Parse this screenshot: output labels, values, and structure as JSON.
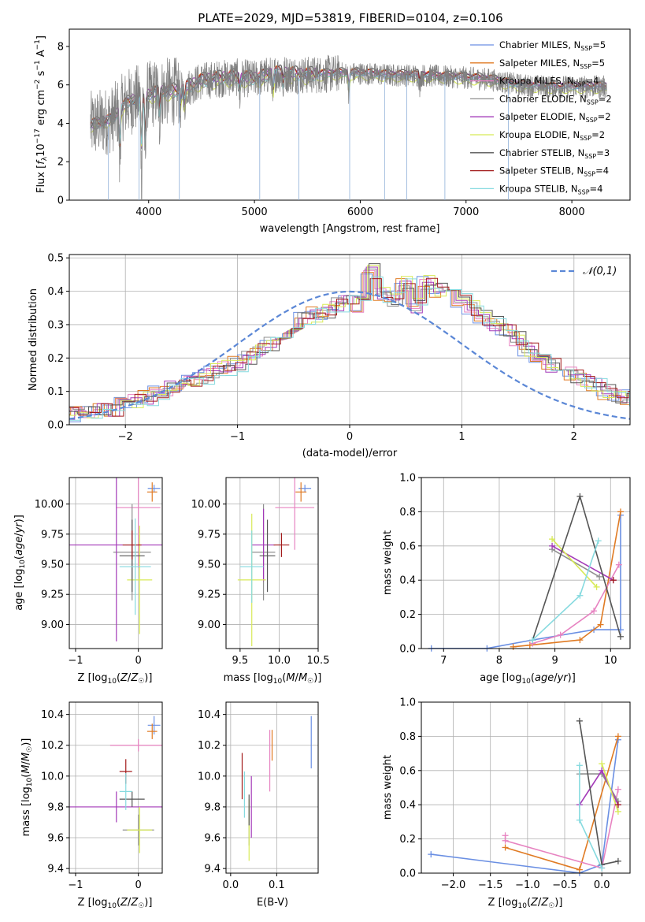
{
  "title": "PLATE=2029, MJD=53819, FIBERID=0104, z=0.106",
  "colors": {
    "Chabrier MILES": "#6a8fe3",
    "Salpeter MILES": "#e07b24",
    "Kroupa MILES": "#e783c1",
    "Chabrier ELODIE": "#909090",
    "Salpeter ELODIE": "#a339b8",
    "Kroupa ELODIE": "#d8ea57",
    "Chabrier STELIB": "#555555",
    "Salpeter STELIB": "#a31c1c",
    "Kroupa STELIB": "#86dadf"
  },
  "chart_data": [
    {
      "type": "line",
      "name": "spectrum",
      "xlabel": "wavelength [Angstrom, rest frame]",
      "ylabel": "Flux [fλ10⁻¹⁷ erg cm⁻² s⁻¹ A⁻¹]",
      "xlim": [
        3250,
        8550
      ],
      "ylim": [
        0,
        8.9
      ],
      "xticks": [
        4000,
        5000,
        6000,
        7000,
        8000
      ],
      "yticks": [
        0,
        2,
        4,
        6,
        8
      ],
      "legend_position": "right",
      "legend": [
        {
          "series": "Chabrier MILES",
          "label": "Chabrier MILES, N_SSP=5"
        },
        {
          "series": "Salpeter MILES",
          "label": "Salpeter MILES, N_SSP=5"
        },
        {
          "series": "Kroupa MILES",
          "label": "Kroupa MILES, N_SSP=4"
        },
        {
          "series": "Chabrier ELODIE",
          "label": "Chabrier ELODIE, N_SSP=2"
        },
        {
          "series": "Salpeter ELODIE",
          "label": "Salpeter ELODIE, N_SSP=2"
        },
        {
          "series": "Kroupa ELODIE",
          "label": "Kroupa ELODIE, N_SSP=2"
        },
        {
          "series": "Chabrier STELIB",
          "label": "Chabrier STELIB, N_SSP=3"
        },
        {
          "series": "Salpeter STELIB",
          "label": "Salpeter STELIB, N_SSP=4"
        },
        {
          "series": "Kroupa STELIB",
          "label": "Kroupa STELIB, N_SSP=4"
        }
      ],
      "data_continuum": {
        "x": [
          3450,
          3650,
          3800,
          3950,
          4100,
          4300,
          4500,
          4800,
          5000,
          5200,
          5500,
          5800,
          6000,
          6300,
          6600,
          6900,
          7200,
          7500,
          7800,
          8100,
          8330
        ],
        "y": [
          3.9,
          4.2,
          5.1,
          5.4,
          5.6,
          5.7,
          6.2,
          6.4,
          6.3,
          6.6,
          6.5,
          6.6,
          6.6,
          6.5,
          6.5,
          6.4,
          6.3,
          6.0,
          5.9,
          5.9,
          5.9
        ]
      }
    },
    {
      "type": "histogram",
      "name": "normalized residuals",
      "xlabel": "(data-model)/error",
      "ylabel": "Normed distribution",
      "xlim": [
        -2.5,
        2.5
      ],
      "ylim": [
        0,
        0.51
      ],
      "xticks": [
        -2,
        -1,
        0,
        1,
        2
      ],
      "yticks": [
        0.0,
        0.1,
        0.2,
        0.3,
        0.4,
        0.5
      ],
      "reference_curve": {
        "label": "𝒩(0,1)",
        "mean": 0,
        "sigma": 1,
        "style": "dashed"
      },
      "bin_width": 0.1,
      "base_values": [
        0.03,
        0.03,
        0.04,
        0.04,
        0.05,
        0.06,
        0.07,
        0.08,
        0.1,
        0.11,
        0.12,
        0.13,
        0.14,
        0.16,
        0.17,
        0.18,
        0.2,
        0.22,
        0.24,
        0.27,
        0.29,
        0.32,
        0.33,
        0.34,
        0.36,
        0.38,
        0.36,
        0.46,
        0.39,
        0.38,
        0.42,
        0.36,
        0.43,
        0.4,
        0.41,
        0.37,
        0.35,
        0.32,
        0.3,
        0.28,
        0.26,
        0.23,
        0.2,
        0.18,
        0.17,
        0.15,
        0.13,
        0.12,
        0.1,
        0.09,
        0.08,
        0.07,
        0.06,
        0.05,
        0.05,
        0.04
      ]
    },
    {
      "type": "errorbar",
      "name": "age vs metallicity",
      "xlabel": "Z [log₁₀(Z/Z☉)]",
      "ylabel": "age  [log₁₀(age/yr)]",
      "xlim": [
        -1.1,
        0.38
      ],
      "ylim": [
        8.8,
        10.22
      ],
      "xticks": [
        -1,
        0
      ],
      "yticks": [
        9.0,
        9.25,
        9.5,
        9.75,
        10.0
      ],
      "points": [
        {
          "series": "Chabrier MILES",
          "x": 0.25,
          "xerr": 0.1,
          "y": 10.13,
          "yerr": 0.03
        },
        {
          "series": "Salpeter MILES",
          "x": 0.22,
          "xerr": 0.08,
          "y": 10.1,
          "yerr": 0.08
        },
        {
          "series": "Kroupa MILES",
          "x": 0.0,
          "xerr": 0.35,
          "y": 9.97,
          "yerr": 0.5
        },
        {
          "series": "Chabrier ELODIE",
          "x": -0.1,
          "xerr": 0.3,
          "y": 9.6,
          "yerr": 0.4
        },
        {
          "series": "Salpeter ELODIE",
          "x": -0.35,
          "xerr": 0.75,
          "y": 9.66,
          "yerr": 0.8
        },
        {
          "series": "Kroupa ELODIE",
          "x": 0.02,
          "xerr": 0.2,
          "y": 9.37,
          "yerr": 0.45
        },
        {
          "series": "Chabrier STELIB",
          "x": -0.1,
          "xerr": 0.2,
          "y": 9.57,
          "yerr": 0.3
        },
        {
          "series": "Salpeter STELIB",
          "x": -0.1,
          "xerr": 0.15,
          "y": 9.66,
          "yerr": 0.12
        },
        {
          "series": "Kroupa STELIB",
          "x": -0.05,
          "xerr": 0.25,
          "y": 9.48,
          "yerr": 0.4
        }
      ]
    },
    {
      "type": "errorbar",
      "name": "age vs mass",
      "xlabel": "mass [log₁₀(M/M☉)]",
      "ylabel": "",
      "xlim": [
        9.32,
        10.5
      ],
      "ylim": [
        8.8,
        10.22
      ],
      "xticks": [
        9.5,
        10.0,
        10.5
      ],
      "yticks": [
        9.0,
        9.25,
        9.5,
        9.75,
        10.0
      ],
      "points": [
        {
          "series": "Chabrier MILES",
          "x": 10.33,
          "xerr": 0.08,
          "y": 10.13,
          "yerr": 0.03
        },
        {
          "series": "Salpeter MILES",
          "x": 10.28,
          "xerr": 0.07,
          "y": 10.1,
          "yerr": 0.08
        },
        {
          "series": "Kroupa MILES",
          "x": 10.2,
          "xerr": 0.25,
          "y": 9.97,
          "yerr": 0.35
        },
        {
          "series": "Chabrier ELODIE",
          "x": 9.8,
          "xerr": 0.15,
          "y": 9.6,
          "yerr": 0.4
        },
        {
          "series": "Salpeter ELODIE",
          "x": 9.8,
          "xerr": 0.15,
          "y": 9.66,
          "yerr": 0.3
        },
        {
          "series": "Kroupa ELODIE",
          "x": 9.65,
          "xerr": 0.18,
          "y": 9.37,
          "yerr": 0.55
        },
        {
          "series": "Chabrier STELIB",
          "x": 9.85,
          "xerr": 0.1,
          "y": 9.57,
          "yerr": 0.3
        },
        {
          "series": "Salpeter STELIB",
          "x": 10.03,
          "xerr": 0.1,
          "y": 9.66,
          "yerr": 0.1
        },
        {
          "series": "Kroupa STELIB",
          "x": 9.65,
          "xerr": 0.15,
          "y": 9.48,
          "yerr": 0.3
        }
      ]
    },
    {
      "type": "line",
      "name": "mass weight vs age",
      "xlabel": "age  [log₁₀(age/yr)]",
      "ylabel": "mass weight",
      "xlim": [
        6.6,
        10.35
      ],
      "ylim": [
        0,
        1.0
      ],
      "xticks": [
        7,
        8,
        9,
        10
      ],
      "yticks": [
        0.0,
        0.2,
        0.4,
        0.6,
        0.8,
        1.0
      ],
      "series": [
        {
          "series": "Chabrier MILES",
          "x": [
            6.78,
            7.78,
            8.6,
            9.7,
            10.18,
            10.18
          ],
          "y": [
            0.001,
            0.001,
            0.05,
            0.11,
            0.11,
            0.78
          ]
        },
        {
          "series": "Salpeter MILES",
          "x": [
            8.25,
            8.55,
            9.45,
            9.82,
            10.18
          ],
          "y": [
            0.01,
            0.02,
            0.05,
            0.14,
            0.8
          ]
        },
        {
          "series": "Kroupa MILES",
          "x": [
            8.6,
            9.1,
            9.7,
            10.15
          ],
          "y": [
            0.03,
            0.08,
            0.22,
            0.49
          ]
        },
        {
          "series": "Chabrier ELODIE",
          "x": [
            8.95,
            9.8
          ],
          "y": [
            0.58,
            0.42
          ]
        },
        {
          "series": "Salpeter ELODIE",
          "x": [
            8.95,
            10.05
          ],
          "y": [
            0.6,
            0.4
          ]
        },
        {
          "series": "Kroupa ELODIE",
          "x": [
            8.95,
            9.75
          ],
          "y": [
            0.64,
            0.36
          ]
        },
        {
          "series": "Chabrier STELIB",
          "x": [
            8.6,
            9.45,
            10.18
          ],
          "y": [
            0.05,
            0.89,
            0.07
          ]
        },
        {
          "series": "Salpeter STELIB",
          "x": [
            10.05
          ],
          "y": [
            0.4
          ]
        },
        {
          "series": "Kroupa STELIB",
          "x": [
            8.6,
            9.45,
            9.78
          ],
          "y": [
            0.05,
            0.31,
            0.63
          ]
        }
      ]
    },
    {
      "type": "errorbar",
      "name": "mass vs metallicity",
      "xlabel": "Z [log₁₀(Z/Z☉)]",
      "ylabel": "mass [log₁₀(M/M☉)]",
      "xlim": [
        -1.1,
        0.38
      ],
      "ylim": [
        9.37,
        10.48
      ],
      "xticks": [
        -1,
        0
      ],
      "yticks": [
        9.4,
        9.6,
        9.8,
        10.0,
        10.2,
        10.4
      ],
      "points": [
        {
          "series": "Chabrier MILES",
          "x": 0.25,
          "xerr": 0.1,
          "y": 10.33,
          "yerr": 0.06
        },
        {
          "series": "Salpeter MILES",
          "x": 0.22,
          "xerr": 0.08,
          "y": 10.29,
          "yerr": 0.05
        },
        {
          "series": "Kroupa MILES",
          "x": 0.0,
          "xerr": 0.45,
          "y": 10.2,
          "yerr": 0.04
        },
        {
          "series": "Chabrier ELODIE",
          "x": 0.0,
          "xerr": 0.25,
          "y": 9.65,
          "yerr": 0.1
        },
        {
          "series": "Salpeter ELODIE",
          "x": -0.35,
          "xerr": 0.75,
          "y": 9.8,
          "yerr": 0.1
        },
        {
          "series": "Kroupa ELODIE",
          "x": 0.02,
          "xerr": 0.2,
          "y": 9.65,
          "yerr": 0.15
        },
        {
          "series": "Chabrier STELIB",
          "x": -0.1,
          "xerr": 0.2,
          "y": 9.85,
          "yerr": 0.05
        },
        {
          "series": "Salpeter STELIB",
          "x": -0.2,
          "xerr": 0.1,
          "y": 10.03,
          "yerr": 0.08
        },
        {
          "series": "Kroupa STELIB",
          "x": -0.2,
          "xerr": 0.1,
          "y": 9.9,
          "yerr": 0.12
        }
      ]
    },
    {
      "type": "errorbar",
      "name": "mass vs extinction",
      "xlabel": "E(B-V)",
      "ylabel": "",
      "xlim": [
        -0.01,
        0.19
      ],
      "ylim": [
        9.37,
        10.48
      ],
      "xticks": [
        0.0,
        0.1
      ],
      "yticks": [
        9.4,
        9.6,
        9.8,
        10.0,
        10.2,
        10.4
      ],
      "points": [
        {
          "series": "Chabrier MILES",
          "x": 0.175,
          "xerr": 0,
          "y": 10.22,
          "yerr": 0.17
        },
        {
          "series": "Salpeter MILES",
          "x": 0.09,
          "xerr": 0,
          "y": 10.2,
          "yerr": 0.1
        },
        {
          "series": "Kroupa MILES",
          "x": 0.085,
          "xerr": 0,
          "y": 10.1,
          "yerr": 0.2
        },
        {
          "series": "Chabrier ELODIE",
          "x": 0.04,
          "xerr": 0,
          "y": 9.68,
          "yerr": 0.13
        },
        {
          "series": "Salpeter ELODIE",
          "x": 0.045,
          "xerr": 0,
          "y": 9.8,
          "yerr": 0.2
        },
        {
          "series": "Kroupa ELODIE",
          "x": 0.04,
          "xerr": 0,
          "y": 9.65,
          "yerr": 0.2
        },
        {
          "series": "Chabrier STELIB",
          "x": 0.04,
          "xerr": 0,
          "y": 9.78,
          "yerr": 0.1
        },
        {
          "series": "Salpeter STELIB",
          "x": 0.025,
          "xerr": 0,
          "y": 10.0,
          "yerr": 0.15
        },
        {
          "series": "Kroupa STELIB",
          "x": 0.03,
          "xerr": 0,
          "y": 9.88,
          "yerr": 0.15
        }
      ]
    },
    {
      "type": "line",
      "name": "mass weight vs metallicity",
      "xlabel": "Z [log₁₀(Z/Z☉)]",
      "ylabel": "mass weight",
      "xlim": [
        -2.43,
        0.38
      ],
      "ylim": [
        0,
        1.0
      ],
      "xticks": [
        -2.0,
        -1.5,
        -1.0,
        -0.5,
        0.0
      ],
      "yticks": [
        0.0,
        0.2,
        0.4,
        0.6,
        0.8,
        1.0
      ],
      "series": [
        {
          "series": "Chabrier MILES",
          "x": [
            -2.3,
            -0.3,
            0.0,
            0.22
          ],
          "y": [
            0.11,
            0.001,
            0.05,
            0.78
          ]
        },
        {
          "series": "Salpeter MILES",
          "x": [
            -1.3,
            -0.3,
            0.22
          ],
          "y": [
            0.15,
            0.02,
            0.8
          ]
        },
        {
          "series": "Kroupa MILES",
          "x": [
            -1.3,
            -1.3,
            0.0,
            0.22
          ],
          "y": [
            0.22,
            0.19,
            0.03,
            0.49
          ]
        },
        {
          "series": "Chabrier ELODIE",
          "x": [
            -0.3,
            0.0,
            0.22
          ],
          "y": [
            0.58,
            0.58,
            0.42
          ]
        },
        {
          "series": "Salpeter ELODIE",
          "x": [
            -0.3,
            0.0,
            0.22
          ],
          "y": [
            0.4,
            0.6,
            0.4
          ]
        },
        {
          "series": "Kroupa ELODIE",
          "x": [
            0.0,
            0.22
          ],
          "y": [
            0.64,
            0.36
          ]
        },
        {
          "series": "Chabrier STELIB",
          "x": [
            -0.3,
            0.0,
            0.22
          ],
          "y": [
            0.89,
            0.05,
            0.07
          ]
        },
        {
          "series": "Salpeter STELIB",
          "x": [
            0.22
          ],
          "y": [
            0.4
          ]
        },
        {
          "series": "Kroupa STELIB",
          "x": [
            -0.3,
            -0.3,
            0.0
          ],
          "y": [
            0.63,
            0.31,
            0.03
          ]
        }
      ]
    }
  ]
}
